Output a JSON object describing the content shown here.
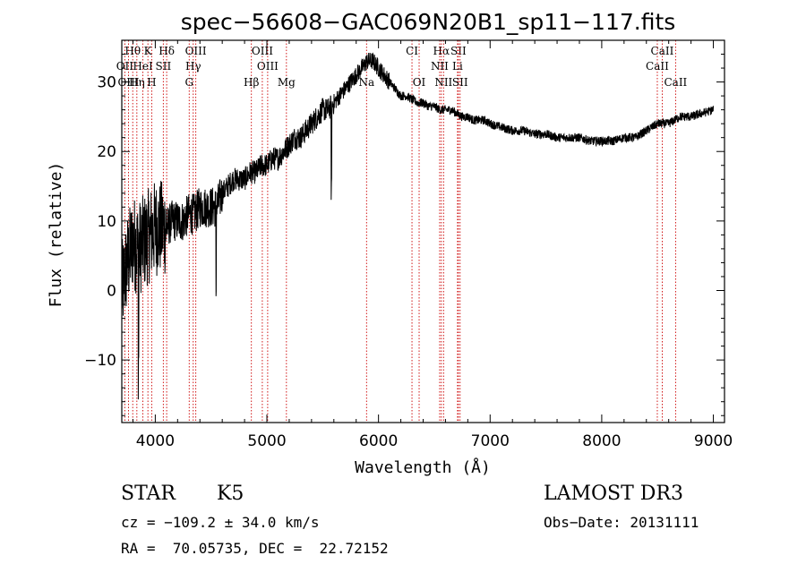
{
  "chart_data": {
    "type": "line",
    "title": "spec−56608−GAC069N20B1_sp11−117.fits",
    "xlabel": "Wavelength (Å)",
    "ylabel": "Flux (relative)",
    "xlim": [
      3700,
      9100
    ],
    "ylim": [
      -19,
      36
    ],
    "x_ticks": [
      4000,
      5000,
      6000,
      7000,
      8000,
      9000
    ],
    "x_tick_labels": [
      "4000",
      "5000",
      "6000",
      "7000",
      "8000",
      "9000"
    ],
    "y_ticks": [
      -10,
      0,
      10,
      20,
      30
    ],
    "y_tick_labels": [
      "−10",
      "0",
      "10",
      "20",
      "30"
    ],
    "series": [
      {
        "name": "flux",
        "x": [
          3700,
          3750,
          3800,
          3850,
          3900,
          3950,
          4000,
          4050,
          4100,
          4150,
          4200,
          4250,
          4300,
          4350,
          4400,
          4450,
          4500,
          4550,
          4600,
          4650,
          4700,
          4750,
          4800,
          4850,
          4900,
          4950,
          5000,
          5050,
          5100,
          5150,
          5200,
          5250,
          5300,
          5350,
          5400,
          5450,
          5500,
          5550,
          5600,
          5650,
          5700,
          5750,
          5800,
          5850,
          5900,
          5950,
          6000,
          6050,
          6100,
          6150,
          6200,
          6250,
          6300,
          6350,
          6400,
          6450,
          6500,
          6550,
          6600,
          6650,
          6700,
          6750,
          6800,
          6850,
          6900,
          6950,
          7000,
          7100,
          7200,
          7300,
          7400,
          7500,
          7600,
          7700,
          7800,
          7900,
          8000,
          8100,
          8200,
          8300,
          8400,
          8500,
          8600,
          8700,
          8800,
          8900,
          9000
        ],
        "y": [
          0,
          4,
          7,
          6,
          7,
          8,
          9,
          9,
          9,
          10,
          10,
          10,
          11,
          11,
          12,
          12,
          12,
          12,
          14,
          15,
          16,
          16,
          16,
          17,
          17,
          18,
          18,
          19,
          19,
          20,
          21,
          22,
          22,
          23,
          24,
          25,
          26,
          26,
          27,
          28,
          29,
          30,
          31,
          32,
          33,
          33,
          32,
          31,
          30,
          29,
          28,
          28,
          27.5,
          27,
          27,
          26.5,
          26.5,
          26,
          26,
          26,
          25.5,
          25,
          25,
          24.5,
          24.5,
          24.5,
          24,
          23.5,
          23,
          23,
          22.5,
          22.5,
          22,
          22,
          22,
          21.5,
          21.5,
          21.5,
          22,
          22,
          23,
          24,
          24,
          25,
          25,
          25.5,
          26
        ]
      }
    ],
    "line_markers": [
      {
        "label": "Hθ",
        "x": 3798,
        "row": 0
      },
      {
        "label": "K",
        "x": 3934,
        "row": 0
      },
      {
        "label": "Hδ",
        "x": 4102,
        "row": 0
      },
      {
        "label": "OIII",
        "x": 4363,
        "row": 0
      },
      {
        "label": "OIII",
        "x": 4959,
        "row": 0
      },
      {
        "label": "CI",
        "x": 6300,
        "row": 0
      },
      {
        "label": "Hα",
        "x": 6563,
        "row": 0
      },
      {
        "label": "SII",
        "x": 6716,
        "row": 0
      },
      {
        "label": "CaII",
        "x": 8542,
        "row": 0
      },
      {
        "label": "OII",
        "x": 3727,
        "row": 1
      },
      {
        "label": "HeI",
        "x": 3889,
        "row": 1
      },
      {
        "label": "SII",
        "x": 4072,
        "row": 1
      },
      {
        "label": "Hγ",
        "x": 4340,
        "row": 1
      },
      {
        "label": "OIII",
        "x": 5007,
        "row": 1
      },
      {
        "label": "NII",
        "x": 6548,
        "row": 1
      },
      {
        "label": "Li",
        "x": 6708,
        "row": 1
      },
      {
        "label": "CaII",
        "x": 8498,
        "row": 1
      },
      {
        "label": "OIII",
        "x": 3760,
        "row": 2
      },
      {
        "label": "Hη",
        "x": 3835,
        "row": 2
      },
      {
        "label": "H",
        "x": 3968,
        "row": 2
      },
      {
        "label": "G",
        "x": 4304,
        "row": 2
      },
      {
        "label": "Hβ",
        "x": 4861,
        "row": 2
      },
      {
        "label": "Mg",
        "x": 5175,
        "row": 2
      },
      {
        "label": "Na",
        "x": 5893,
        "row": 2
      },
      {
        "label": "OI",
        "x": 6364,
        "row": 2
      },
      {
        "label": "NII",
        "x": 6583,
        "row": 2
      },
      {
        "label": "SII",
        "x": 6731,
        "row": 2
      },
      {
        "label": "CaII",
        "x": 8662,
        "row": 2
      }
    ]
  },
  "info": {
    "object_class": "STAR",
    "subclass": "K5",
    "survey": "LAMOST DR3",
    "cz": "cz = −109.2 ± 34.0 km/s",
    "obs_date": "Obs−Date: 20131111",
    "radec": "RA =  70.05735, DEC =  22.72152"
  },
  "colors": {
    "spectrum": "#000000",
    "marker_line": "#cc0000",
    "axes": "#000000"
  }
}
